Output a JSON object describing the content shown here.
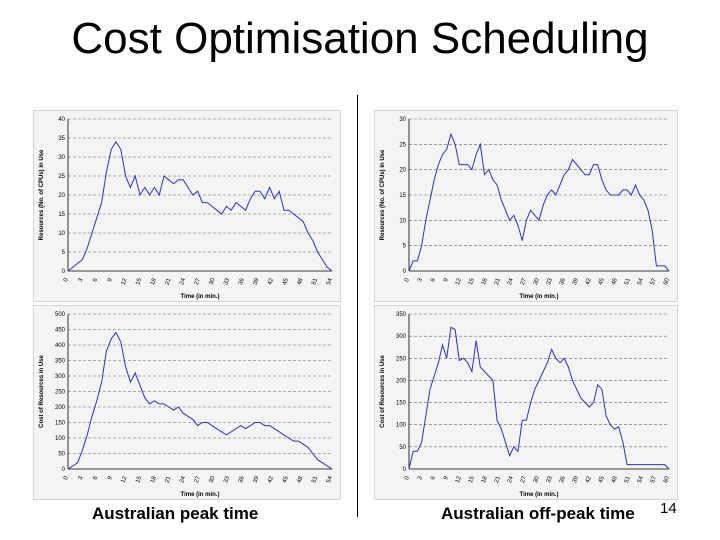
{
  "title": "Cost Optimisation Scheduling",
  "captions": {
    "left": "Australian peak time",
    "right": "Australian off-peak time"
  },
  "page_number": "14",
  "colors": {
    "series": "#3030c8"
  },
  "chart_data": [
    {
      "type": "line",
      "xlabel": "Time (in min.)",
      "ylabel": "Resources (No. of CPUs) in Use",
      "ylim": [
        0,
        40
      ],
      "yticks": [
        "0",
        "5",
        "10",
        "15",
        "20",
        "25",
        "30",
        "35",
        "40"
      ],
      "xticks": [
        "0",
        "3",
        "6",
        "9",
        "12",
        "15",
        "18",
        "21",
        "24",
        "27",
        "30",
        "33",
        "36",
        "39",
        "42",
        "45",
        "48",
        "51",
        "54"
      ],
      "x": [
        0,
        2,
        3,
        4,
        5,
        6,
        7,
        8,
        9,
        10,
        11,
        12,
        13,
        14,
        15,
        16,
        17,
        18,
        19,
        20,
        21,
        22,
        23,
        24,
        25,
        26,
        27,
        28,
        29,
        30,
        31,
        32,
        33,
        34,
        35,
        36,
        37,
        38,
        39,
        40,
        41,
        42,
        43,
        44,
        45,
        46,
        47,
        48,
        49,
        50,
        51,
        52,
        53,
        54,
        55
      ],
      "values": [
        0,
        2,
        3,
        6,
        10,
        14,
        18,
        26,
        32,
        34,
        32,
        25,
        22,
        25,
        20,
        22,
        20,
        22,
        20,
        25,
        24,
        23,
        24,
        24,
        22,
        20,
        21,
        18,
        18,
        17,
        16,
        15,
        17,
        16,
        18,
        17,
        16,
        19,
        21,
        21,
        19,
        22,
        19,
        21,
        16,
        16,
        15,
        14,
        13,
        10,
        8,
        5,
        3,
        1,
        0
      ]
    },
    {
      "type": "line",
      "xlabel": "Time (in min.)",
      "ylabel": "Resources (No. of CPUs) in Use",
      "ylim": [
        0,
        30
      ],
      "yticks": [
        "0",
        "5",
        "10",
        "15",
        "20",
        "25",
        "30"
      ],
      "xticks": [
        "0",
        "3",
        "6",
        "9",
        "12",
        "15",
        "18",
        "21",
        "24",
        "27",
        "30",
        "33",
        "36",
        "39",
        "42",
        "45",
        "48",
        "51",
        "54",
        "57",
        "60"
      ],
      "x": [
        0,
        1,
        2,
        3,
        4,
        5,
        6,
        7,
        8,
        9,
        10,
        11,
        12,
        13,
        14,
        15,
        16,
        17,
        18,
        19,
        20,
        21,
        22,
        23,
        24,
        25,
        26,
        27,
        28,
        29,
        30,
        31,
        32,
        33,
        34,
        35,
        36,
        37,
        38,
        39,
        40,
        41,
        42,
        43,
        44,
        45,
        46,
        47,
        48,
        49,
        50,
        51,
        52,
        53,
        54,
        55,
        56,
        57,
        58,
        59,
        60,
        61,
        62
      ],
      "values": [
        0,
        2,
        2,
        5,
        10,
        14,
        18,
        21,
        23,
        24,
        27,
        25,
        21,
        21,
        21,
        20,
        23,
        25,
        19,
        20,
        18,
        17,
        14,
        12,
        10,
        11,
        9,
        6,
        10,
        12,
        11,
        10,
        13,
        15,
        16,
        15,
        17,
        19,
        20,
        22,
        21,
        20,
        19,
        19,
        21,
        21,
        18,
        16,
        15,
        15,
        15,
        16,
        16,
        15,
        17,
        15,
        14,
        12,
        8,
        1,
        1,
        1,
        0
      ]
    },
    {
      "type": "line",
      "xlabel": "Time (in min.)",
      "ylabel": "Cost of Resources in Use",
      "ylim": [
        0,
        500
      ],
      "yticks": [
        "0",
        "50",
        "100",
        "150",
        "200",
        "250",
        "300",
        "350",
        "400",
        "450",
        "500"
      ],
      "xticks": [
        "0",
        "3",
        "6",
        "9",
        "12",
        "15",
        "18",
        "21",
        "24",
        "27",
        "30",
        "33",
        "36",
        "39",
        "42",
        "45",
        "48",
        "51",
        "54"
      ],
      "x": [
        0,
        2,
        3,
        4,
        5,
        6,
        7,
        8,
        9,
        10,
        11,
        12,
        13,
        14,
        15,
        16,
        17,
        18,
        19,
        20,
        21,
        22,
        23,
        24,
        25,
        26,
        27,
        28,
        29,
        30,
        31,
        32,
        33,
        34,
        35,
        36,
        37,
        38,
        39,
        40,
        41,
        42,
        43,
        44,
        45,
        46,
        47,
        48,
        49,
        50,
        51,
        52,
        53,
        54,
        55
      ],
      "values": [
        0,
        20,
        60,
        110,
        170,
        220,
        280,
        380,
        420,
        440,
        410,
        330,
        280,
        310,
        270,
        230,
        210,
        220,
        210,
        210,
        200,
        190,
        200,
        180,
        170,
        160,
        140,
        150,
        150,
        140,
        130,
        120,
        110,
        120,
        130,
        140,
        130,
        140,
        150,
        150,
        140,
        140,
        130,
        120,
        110,
        100,
        90,
        90,
        80,
        70,
        50,
        30,
        20,
        10,
        0
      ]
    },
    {
      "type": "line",
      "xlabel": "Time (in min.)",
      "ylabel": "Cost of Resources in Use",
      "ylim": [
        0,
        350
      ],
      "yticks": [
        "0",
        "50",
        "100",
        "150",
        "200",
        "250",
        "300",
        "350"
      ],
      "xticks": [
        "0",
        "3",
        "6",
        "9",
        "12",
        "15",
        "18",
        "21",
        "24",
        "27",
        "30",
        "33",
        "36",
        "39",
        "42",
        "45",
        "48",
        "51",
        "54",
        "57",
        "60"
      ],
      "x": [
        0,
        1,
        2,
        3,
        4,
        5,
        6,
        7,
        8,
        9,
        10,
        11,
        12,
        13,
        14,
        15,
        16,
        17,
        18,
        19,
        20,
        21,
        22,
        23,
        24,
        25,
        26,
        27,
        28,
        29,
        30,
        31,
        32,
        33,
        34,
        35,
        36,
        37,
        38,
        39,
        40,
        41,
        42,
        43,
        44,
        45,
        46,
        47,
        48,
        49,
        50,
        51,
        52,
        53,
        54,
        55,
        56,
        57,
        58,
        59,
        60,
        61,
        62
      ],
      "values": [
        0,
        40,
        40,
        60,
        120,
        180,
        210,
        240,
        280,
        250,
        320,
        315,
        245,
        250,
        240,
        220,
        290,
        230,
        220,
        210,
        200,
        110,
        90,
        60,
        30,
        50,
        40,
        110,
        110,
        150,
        180,
        200,
        220,
        240,
        270,
        250,
        240,
        250,
        230,
        200,
        180,
        160,
        150,
        140,
        150,
        190,
        180,
        120,
        100,
        90,
        95,
        60,
        10,
        10,
        10,
        10,
        10,
        10,
        10,
        10,
        10,
        10,
        0
      ]
    }
  ]
}
